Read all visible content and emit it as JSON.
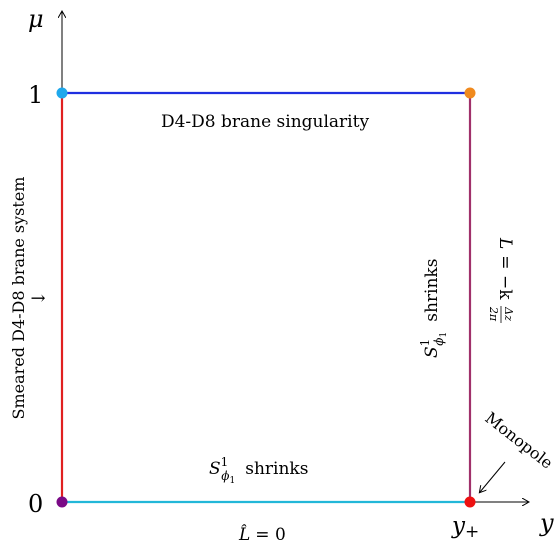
{
  "axes": {
    "y_axis_label": "μ",
    "x_axis_label": "y",
    "tick_1": "1",
    "tick_0": "0",
    "tick_y_plus_base": "y",
    "tick_y_plus_sub": "+"
  },
  "edges": {
    "top": {
      "label": "D4-D8 brane singularity",
      "color": "#1f2fe0"
    },
    "left": {
      "label": "Smeared D4-D8 brane system",
      "color": "#e02020",
      "arrow": "→"
    },
    "right": {
      "color": "#a0306a"
    },
    "bottom": {
      "color": "#22b7d8"
    }
  },
  "annotations": {
    "bottom_shrinks": {
      "symbol": "S",
      "sup": "1",
      "sub": "ϕ",
      "subsub": "1",
      "word": "shrinks"
    },
    "right_shrinks": {
      "symbol": "S",
      "sup": "1",
      "sub": "ϕ",
      "subsub": "1",
      "word": "shrinks"
    },
    "bottom_condition": {
      "lhs": "L̂",
      "eq": "= 0"
    },
    "right_condition": {
      "lhs": "L",
      "eq": "= −k",
      "num": "Δz",
      "den": "2π"
    },
    "monopole": "Monopole"
  },
  "corners": {
    "top_left": "#1ea8ec",
    "top_right": "#f08a1e",
    "bottom_left": "#7a0a86",
    "bottom_right": "#ee1111"
  }
}
